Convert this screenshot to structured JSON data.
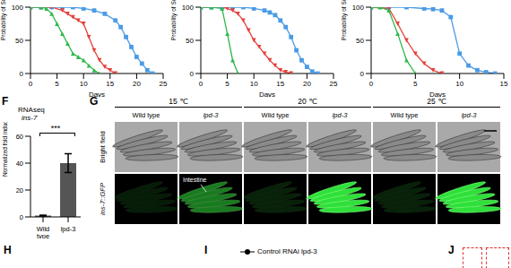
{
  "chart_data": [
    {
      "type": "line",
      "xlabel": "Days",
      "ylabel": "Probability of Survival",
      "xlim": [
        0,
        25
      ],
      "xticks": [
        0,
        5,
        10,
        15,
        20,
        25
      ],
      "ylim": [
        0,
        100
      ],
      "yticks": [
        0,
        50,
        100
      ],
      "series": [
        {
          "color": "#4a9be6",
          "marker": "square",
          "x": [
            0,
            2,
            4,
            6,
            8,
            10,
            12,
            14,
            16,
            17,
            18,
            19,
            20,
            21,
            22,
            23
          ],
          "values": [
            100,
            100,
            100,
            100,
            100,
            98,
            95,
            90,
            80,
            70,
            55,
            40,
            25,
            15,
            5,
            0
          ]
        },
        {
          "color": "#e5403a",
          "marker": "triangle-down",
          "x": [
            0,
            2,
            4,
            6,
            7,
            8,
            9,
            10,
            11,
            12,
            13,
            14,
            15,
            16
          ],
          "values": [
            100,
            100,
            100,
            95,
            90,
            85,
            80,
            75,
            55,
            35,
            20,
            10,
            5,
            0
          ]
        },
        {
          "color": "#2db84a",
          "marker": "triangle",
          "x": [
            0,
            2,
            3,
            4,
            5,
            6,
            7,
            8,
            9,
            10,
            11,
            12,
            13
          ],
          "values": [
            100,
            100,
            98,
            90,
            75,
            60,
            45,
            30,
            25,
            20,
            12,
            5,
            0
          ]
        }
      ]
    },
    {
      "type": "line",
      "xlabel": "Days",
      "ylabel": "Probability of Survival",
      "xlim": [
        0,
        25
      ],
      "xticks": [
        0,
        5,
        10,
        15,
        20,
        25
      ],
      "ylim": [
        0,
        100
      ],
      "yticks": [
        0,
        50,
        100
      ],
      "series": [
        {
          "color": "#4a9be6",
          "marker": "square",
          "x": [
            0,
            2,
            4,
            6,
            8,
            10,
            12,
            13,
            14,
            15,
            16,
            17,
            18,
            19,
            20,
            21,
            22
          ],
          "values": [
            100,
            100,
            100,
            100,
            100,
            98,
            95,
            92,
            88,
            80,
            70,
            55,
            35,
            20,
            10,
            3,
            0
          ]
        },
        {
          "color": "#e5403a",
          "marker": "triangle-down",
          "x": [
            0,
            2,
            4,
            5,
            6,
            7,
            8,
            9,
            10,
            11,
            12,
            13,
            14,
            15,
            16,
            17
          ],
          "values": [
            100,
            100,
            100,
            98,
            95,
            90,
            80,
            65,
            50,
            40,
            30,
            20,
            12,
            5,
            2,
            0
          ]
        },
        {
          "color": "#2db84a",
          "marker": "triangle",
          "x": [
            0,
            2,
            4,
            5,
            6,
            7
          ],
          "values": [
            100,
            100,
            98,
            60,
            20,
            0
          ]
        }
      ]
    },
    {
      "type": "line",
      "xlabel": "Days",
      "ylabel": "Probability of Survival",
      "xlim": [
        0,
        15
      ],
      "xticks": [
        0,
        5,
        10,
        15
      ],
      "ylim": [
        0,
        100
      ],
      "yticks": [
        0,
        50,
        100
      ],
      "series": [
        {
          "color": "#4a9be6",
          "marker": "square",
          "x": [
            0,
            2,
            4,
            6,
            7,
            8,
            9,
            10,
            11,
            12,
            13,
            14
          ],
          "values": [
            100,
            100,
            100,
            98,
            97,
            95,
            85,
            30,
            12,
            5,
            2,
            0
          ]
        },
        {
          "color": "#e5403a",
          "marker": "triangle-down",
          "x": [
            0,
            2,
            3,
            4,
            5,
            6,
            7,
            8
          ],
          "values": [
            100,
            98,
            75,
            50,
            30,
            15,
            5,
            0
          ]
        },
        {
          "color": "#2db84a",
          "marker": "triangle",
          "x": [
            0,
            1,
            2,
            3,
            4,
            5
          ],
          "values": [
            100,
            100,
            95,
            60,
            20,
            0
          ]
        }
      ]
    },
    {
      "type": "bar",
      "label": "F",
      "title": "RNAseq",
      "subtitle": "ins-7",
      "categories": [
        "Wild type",
        "lpd-3"
      ],
      "values": [
        1,
        40
      ],
      "error": [
        0.3,
        7
      ],
      "colors": [
        "#555555",
        "#555555"
      ],
      "ylabel": "Normalized fold induction",
      "ylim": [
        0,
        60
      ],
      "yticks": [
        0,
        20,
        40,
        60
      ],
      "annotation": "***"
    }
  ],
  "figure_g": {
    "label": "G",
    "temperatures": [
      "15 ℃",
      "20 ℃",
      "25 ℃"
    ],
    "genotypes": [
      "Wild type",
      "lpd-3"
    ],
    "rows": [
      "Bright field",
      "ins-7::GFP"
    ],
    "annotation": "Intestine"
  },
  "bottom": {
    "labels": [
      "H",
      "I",
      "J"
    ],
    "legend": {
      "marker": "circle",
      "text": "Control RNAi lpd-3"
    }
  }
}
